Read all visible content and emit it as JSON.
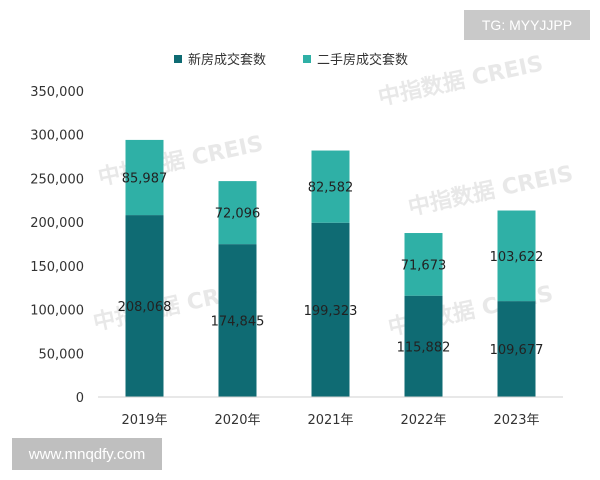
{
  "overlays": {
    "tg_badge": "TG: MYYJJPP",
    "site_url": "www.mnqdfy.com",
    "watermark": "中指数据 CREIS"
  },
  "chart_data": {
    "type": "bar",
    "stacked": true,
    "categories": [
      "2019年",
      "2020年",
      "2021年",
      "2022年",
      "2023年"
    ],
    "series": [
      {
        "name": "新房成交套数",
        "values": [
          208068,
          174845,
          199323,
          115882,
          109677
        ],
        "color": "#0f6b73"
      },
      {
        "name": "二手房成交套数",
        "values": [
          85987,
          72096,
          82582,
          71673,
          103622
        ],
        "color": "#2fb0a6"
      }
    ],
    "y_ticks": [
      0,
      50000,
      100000,
      150000,
      200000,
      250000,
      300000,
      350000
    ],
    "ylim": [
      0,
      350000
    ],
    "grid": false,
    "legend_position": "top-center"
  }
}
